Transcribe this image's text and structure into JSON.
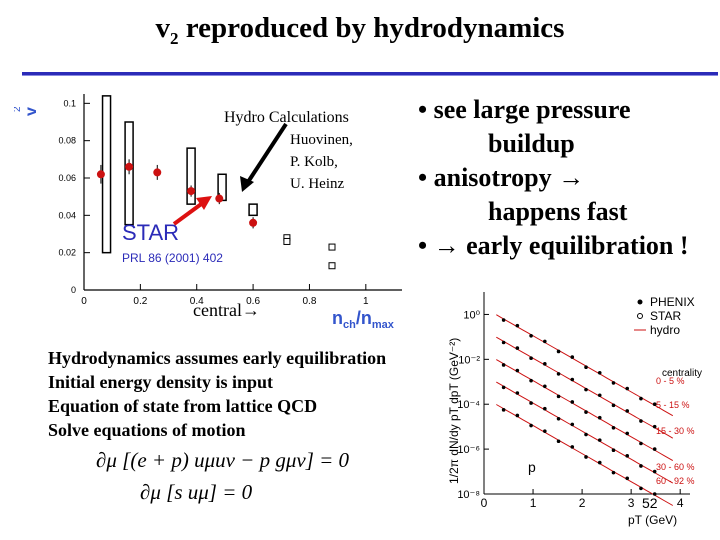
{
  "slide": {
    "title_main": "v",
    "title_sub": "2",
    "title_rest": " reproduced by hydrodynamics"
  },
  "bullets": [
    {
      "text": "• see large pressure"
    },
    {
      "text": "buildup"
    },
    {
      "text": "• anisotropy →"
    },
    {
      "text": "happens fast"
    },
    {
      "text": "• → early equilibration !"
    }
  ],
  "body_lines": [
    "Hydrodynamics assumes early equilibration",
    "Initial energy density is input",
    "Equation of state from lattice QCD",
    "Solve equations of motion"
  ],
  "equations": [
    "∂μ [(e + p) uμuν − p gμν] = 0",
    "∂μ [s uμ] = 0"
  ],
  "left_chart_labels": {
    "hydro_title": "Hydro  Calculations",
    "authors": [
      "Huovinen,",
      "P. Kolb,",
      "U. Heinz"
    ],
    "star": "STAR",
    "ref": "PRL 86 (2001) 402",
    "central": "central→"
  },
  "chart_data": [
    {
      "type": "scatter",
      "title": "",
      "ylabel": "v2",
      "xlabel": "nch/nmax",
      "xlim": [
        0,
        1.1
      ],
      "ylim": [
        0,
        0.105
      ],
      "xticks": [
        "0",
        "0.2",
        "0.4",
        "0.6",
        "0.8",
        "1"
      ],
      "yticks": [
        "0",
        "0.02",
        "0.04",
        "0.06",
        "0.08",
        "0.1"
      ],
      "series": [
        {
          "name": "STAR",
          "color": "#cc1111",
          "x": [
            0.06,
            0.16,
            0.26,
            0.38,
            0.48,
            0.6
          ],
          "y": [
            0.062,
            0.066,
            0.063,
            0.053,
            0.049,
            0.036
          ],
          "err": [
            0.005,
            0.004,
            0.004,
            0.003,
            0.003,
            0.003
          ]
        },
        {
          "name": "Hydro",
          "color": "#000000",
          "bars": [
            [
              0.08,
              0.02,
              0.104
            ],
            [
              0.16,
              0.035,
              0.09
            ],
            [
              0.38,
              0.046,
              0.076
            ],
            [
              0.49,
              0.048,
              0.062
            ],
            [
              0.6,
              0.04,
              0.046
            ]
          ]
        },
        {
          "name": "open",
          "color": "#000000",
          "x": [
            0.72,
            0.72,
            0.88,
            0.88
          ],
          "y": [
            0.028,
            0.026,
            0.023,
            0.013
          ]
        }
      ]
    },
    {
      "type": "scatter",
      "title": "",
      "ylabel": "1/2π dN/dy pT dpT (GeV⁻²)",
      "xlabel": "pT (GeV)",
      "xlim": [
        0,
        4.2
      ],
      "ylim_log10": [
        -8,
        1
      ],
      "xticks": [
        "0",
        "1",
        "2",
        "3",
        "4"
      ],
      "yticks": [
        "10⁰",
        "10⁻²",
        "10⁻⁴",
        "10⁻⁶",
        "10⁻⁸"
      ],
      "legend": [
        "PHENIX",
        "STAR",
        "hydro"
      ],
      "centrality_title": "centrality",
      "centralities": [
        "0 - 5 %",
        "5 - 15 %",
        "15 - 30 %",
        "30 - 60 %",
        "60 - 92 %"
      ],
      "particle": "p",
      "page_number": "52",
      "series_offsets_log10": [
        0,
        -1,
        -2,
        -3,
        -4
      ]
    }
  ]
}
